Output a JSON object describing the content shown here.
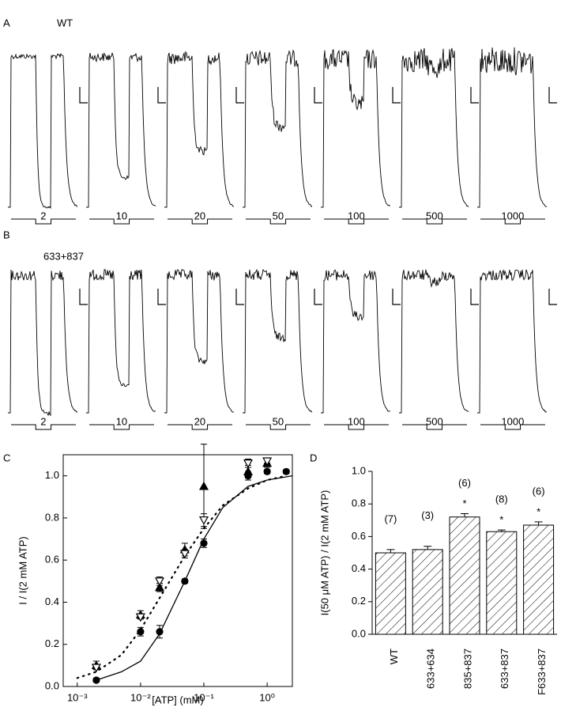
{
  "panels": [
    {
      "label": "A",
      "title": "WT",
      "concentrations": [
        "2",
        "10",
        "20",
        "50",
        "100",
        "500",
        "1000"
      ]
    },
    {
      "label": "B",
      "title": "633+837",
      "concentrations": [
        "2",
        "10",
        "20",
        "50",
        "100",
        "500",
        "1000"
      ]
    }
  ],
  "chart_data": [
    {
      "type": "scatter",
      "panel": "C",
      "xlabel": "[ATP] (mM)",
      "ylabel": "I / I(2 mM ATP)",
      "xscale": "log",
      "xlim": [
        0.0006,
        2.5
      ],
      "ylim": [
        0,
        1.1
      ],
      "xticks": [
        {
          "value": 0.001,
          "label": "10⁻³"
        },
        {
          "value": 0.01,
          "label": "10⁻²"
        },
        {
          "value": 0.1,
          "label": "10⁻¹"
        },
        {
          "value": 1,
          "label": "10⁰"
        }
      ],
      "yticks": [
        {
          "value": 0,
          "label": "0.0"
        },
        {
          "value": 0.2,
          "label": "0.2"
        },
        {
          "value": 0.4,
          "label": "0.4"
        },
        {
          "value": 0.6,
          "label": "0.6"
        },
        {
          "value": 0.8,
          "label": "0.8"
        },
        {
          "value": 1,
          "label": "1.0"
        }
      ],
      "series": [
        {
          "marker": "circle",
          "filled": true,
          "color": "#000000",
          "x": [
            0.002,
            0.01,
            0.02,
            0.05,
            0.1,
            0.5,
            1,
            2
          ],
          "values": [
            0.03,
            0.26,
            0.26,
            0.5,
            0.68,
            1.0,
            1.02,
            1.02
          ],
          "errors": [
            0.01,
            0.02,
            0.03,
            0.01,
            0.02,
            0.02,
            0.01,
            0.01
          ]
        },
        {
          "marker": "triangle",
          "filled": true,
          "color": "#000000",
          "x": [
            0.002,
            0.01,
            0.02,
            0.05,
            0.1,
            0.5,
            1
          ],
          "values": [
            0.1,
            0.34,
            0.47,
            0.65,
            0.95,
            1.02,
            1.06
          ],
          "errors": [
            0.02,
            0.02,
            0.02,
            0.03,
            0.2,
            0.03,
            0.02
          ]
        },
        {
          "marker": "triangle-down",
          "filled": false,
          "color": "#000000",
          "x": [
            0.002,
            0.01,
            0.02,
            0.05,
            0.1,
            0.5,
            1
          ],
          "values": [
            0.09,
            0.33,
            0.5,
            0.63,
            0.79,
            1.06,
            1.07
          ],
          "errors": [
            0.01,
            0.01,
            0.02,
            0.02,
            0.03,
            0.02,
            0.01
          ]
        }
      ],
      "fits": [
        {
          "style": "solid",
          "x": [
            0.002,
            0.005,
            0.01,
            0.02,
            0.05,
            0.1,
            0.2,
            0.5,
            1,
            2.5
          ],
          "values": [
            0.03,
            0.07,
            0.12,
            0.25,
            0.5,
            0.7,
            0.85,
            0.95,
            0.98,
            1.0
          ]
        },
        {
          "style": "dotted",
          "x": [
            0.001,
            0.002,
            0.005,
            0.01,
            0.02,
            0.05,
            0.1,
            0.2,
            0.5,
            1,
            2
          ],
          "values": [
            0.04,
            0.07,
            0.15,
            0.27,
            0.42,
            0.62,
            0.75,
            0.86,
            0.94,
            0.98,
            1.0
          ]
        }
      ]
    },
    {
      "type": "bar",
      "panel": "D",
      "ylabel": "I(50 μM ATP) / I(2 mM ATP)",
      "ylim": [
        0,
        1
      ],
      "yticks": [
        {
          "value": 0,
          "label": "0.0"
        },
        {
          "value": 0.2,
          "label": "0.2"
        },
        {
          "value": 0.4,
          "label": "0.4"
        },
        {
          "value": 0.6,
          "label": "0.6"
        },
        {
          "value": 0.8,
          "label": "0.8"
        },
        {
          "value": 1,
          "label": "1.0"
        }
      ],
      "categories": [
        "WT",
        "633+634",
        "835+837",
        "633+837",
        "F633+837"
      ],
      "values": [
        0.5,
        0.52,
        0.72,
        0.63,
        0.67
      ],
      "errors": [
        0.02,
        0.02,
        0.02,
        0.01,
        0.02
      ],
      "n_labels": [
        "(7)",
        "(3)",
        "(6)",
        "(8)",
        "(6)"
      ],
      "significance": [
        null,
        null,
        "*",
        "*",
        "*"
      ],
      "color": "#000000",
      "hatch": true
    }
  ]
}
